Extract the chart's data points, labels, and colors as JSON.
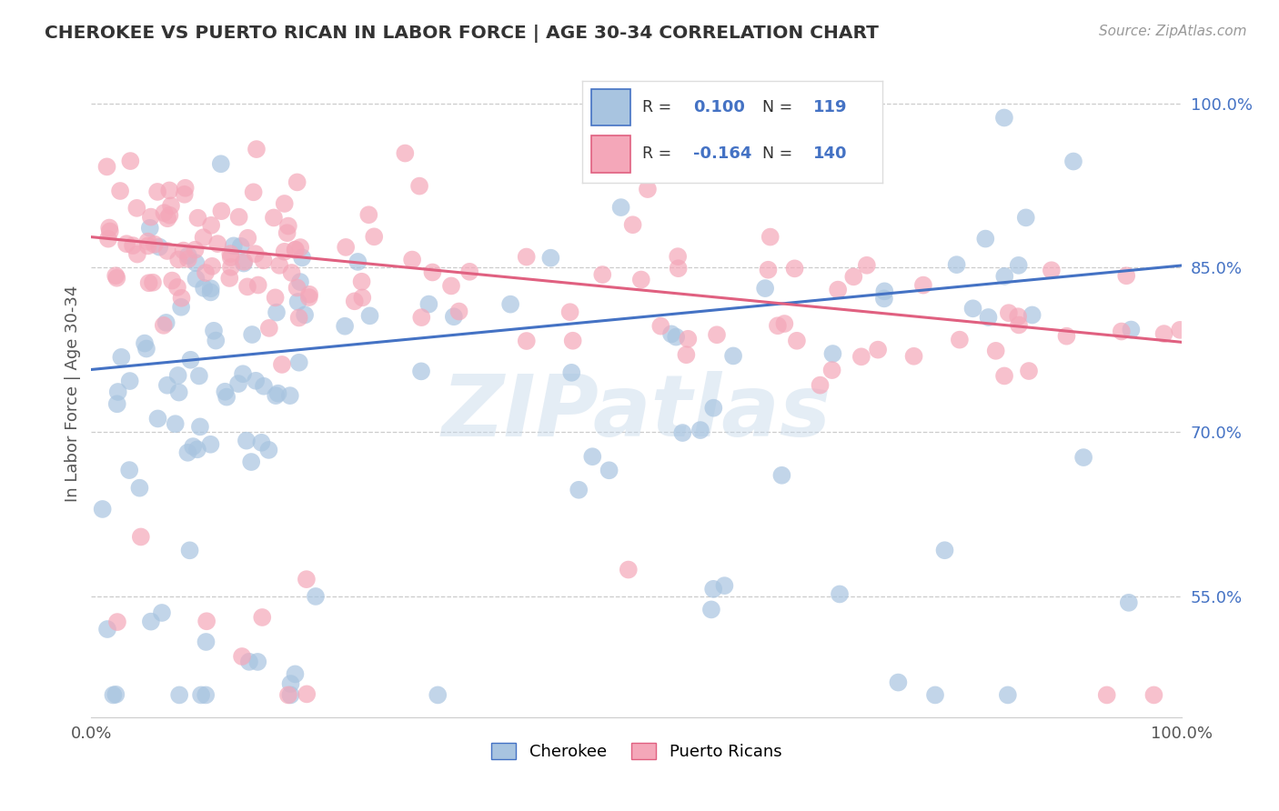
{
  "title": "CHEROKEE VS PUERTO RICAN IN LABOR FORCE | AGE 30-34 CORRELATION CHART",
  "source": "Source: ZipAtlas.com",
  "ylabel": "In Labor Force | Age 30-34",
  "xlim": [
    0.0,
    1.0
  ],
  "ylim": [
    0.44,
    1.03
  ],
  "x_ticks": [
    0.0,
    0.2,
    0.4,
    0.6,
    0.8,
    1.0
  ],
  "x_tick_labels": [
    "0.0%",
    "",
    "",
    "",
    "",
    "100.0%"
  ],
  "y_tick_labels": [
    "55.0%",
    "70.0%",
    "85.0%",
    "100.0%"
  ],
  "y_ticks": [
    0.55,
    0.7,
    0.85,
    1.0
  ],
  "cherokee_R": 0.1,
  "cherokee_N": 119,
  "puertoRican_R": -0.164,
  "puertoRican_N": 140,
  "cherokee_color": "#a8c4e0",
  "cherokee_line_color": "#4472c4",
  "puertoRican_color": "#f4a7b9",
  "puertoRican_line_color": "#e06080",
  "legend_label_cherokee": "Cherokee",
  "legend_label_puertoRican": "Puerto Ricans",
  "background_color": "#ffffff",
  "watermark_text": "ZIPatlas",
  "cherokee_line_y0": 0.757,
  "cherokee_line_y1": 0.852,
  "puertoRican_line_y0": 0.878,
  "puertoRican_line_y1": 0.782
}
